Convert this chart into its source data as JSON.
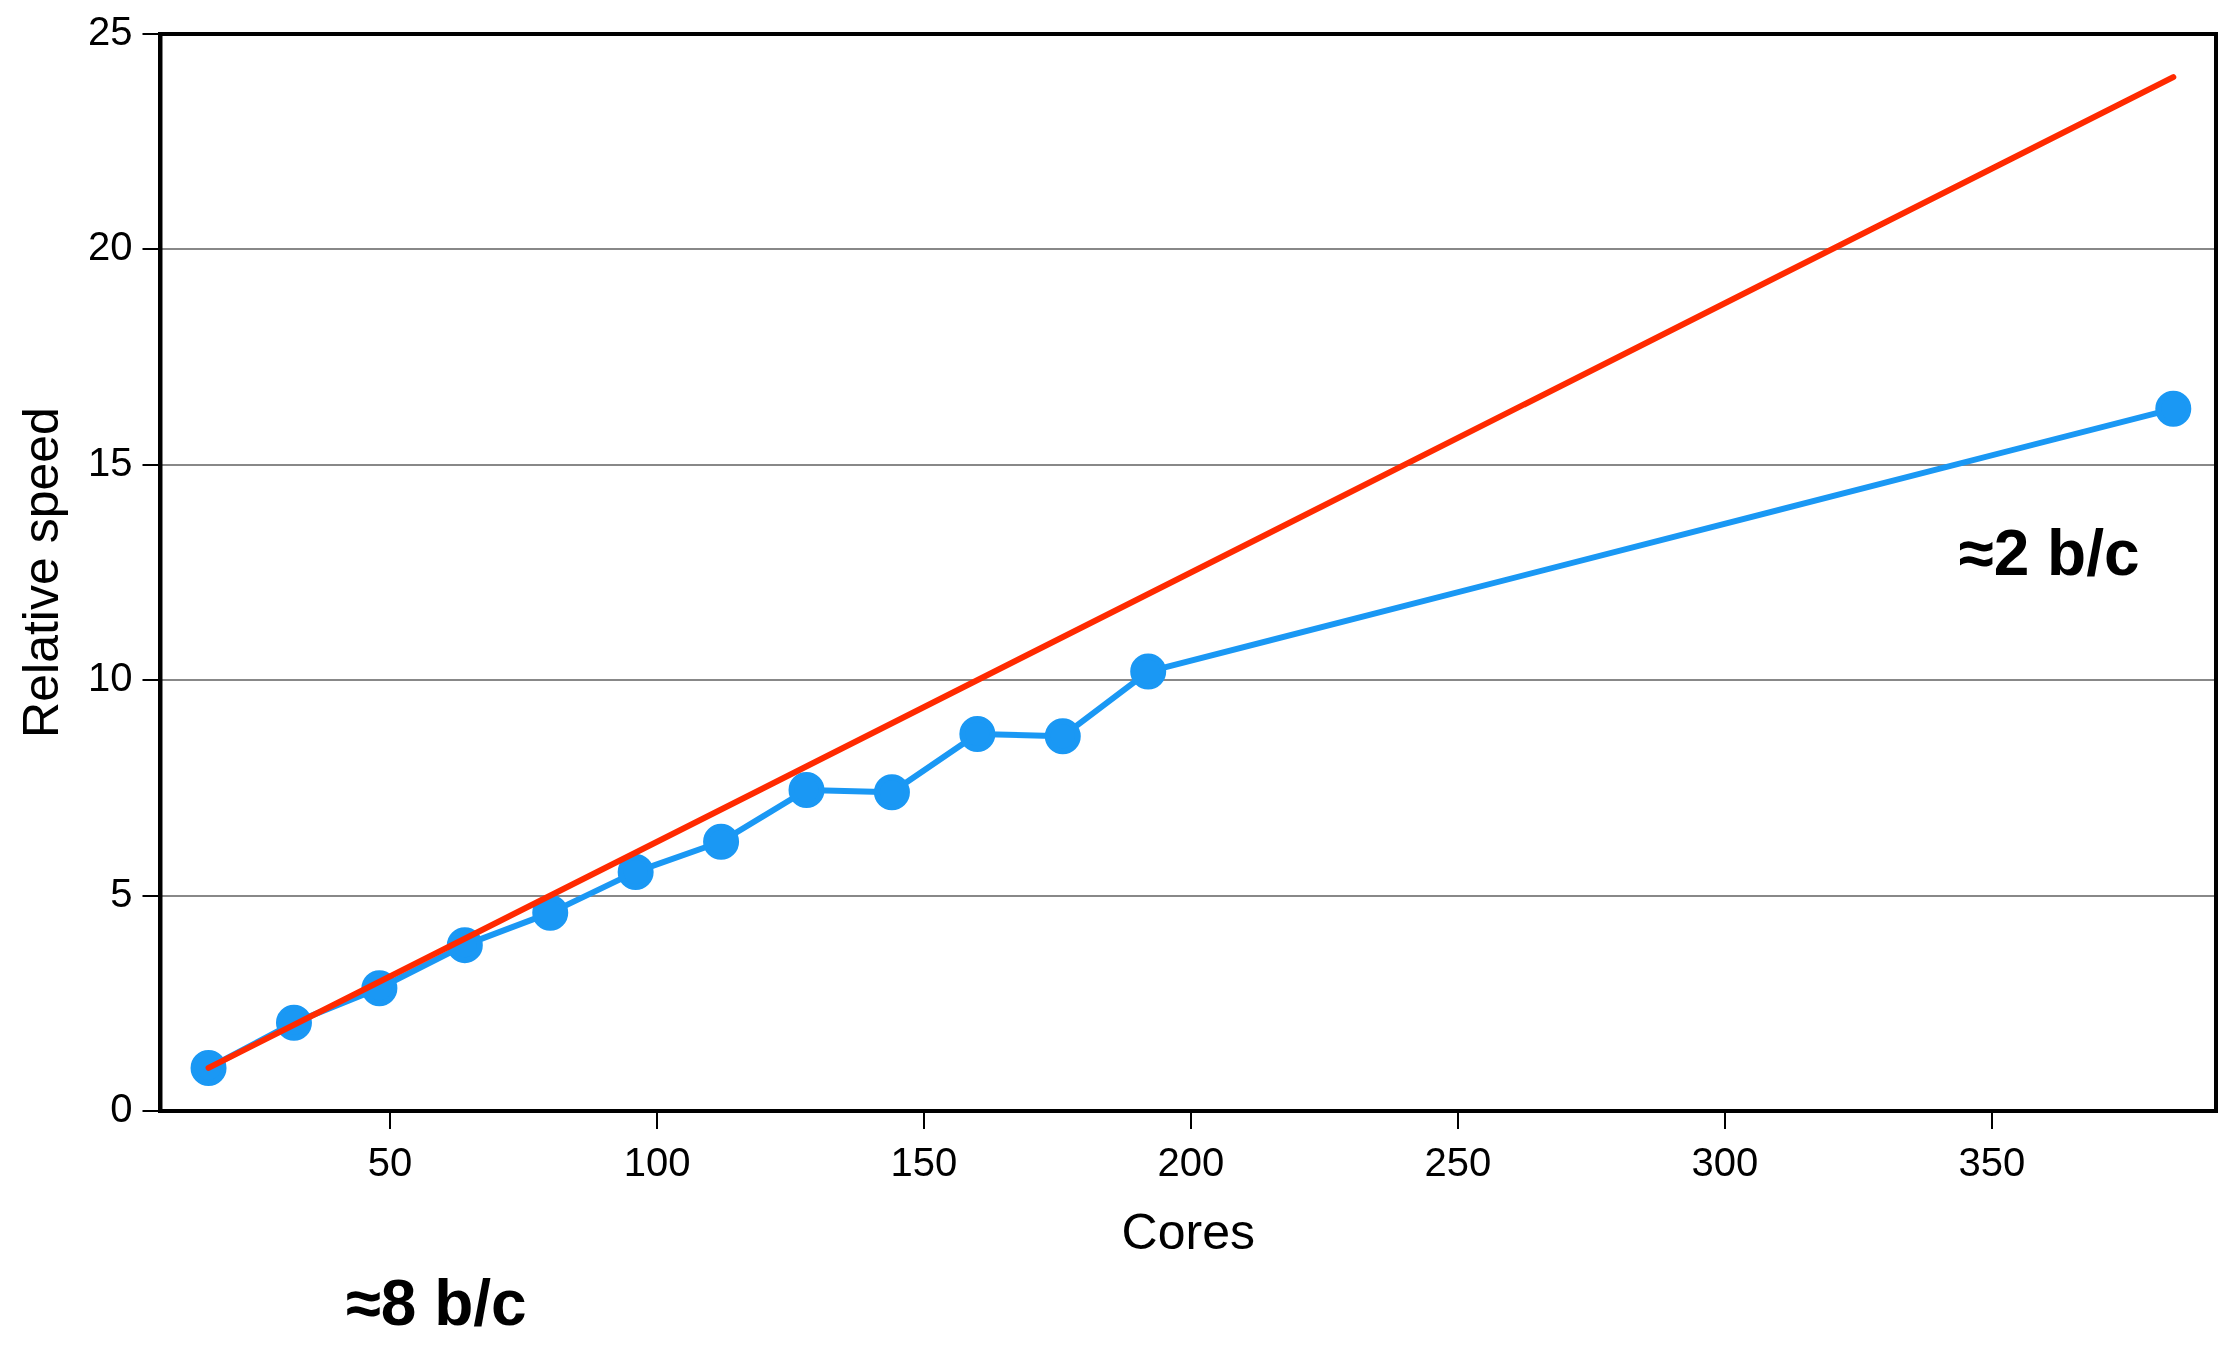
{
  "chart_data": {
    "type": "line",
    "xlabel": "Cores",
    "ylabel": "Relative speed",
    "xlim": [
      7,
      392
    ],
    "xticks": [
      50,
      100,
      150,
      200,
      250,
      300,
      350
    ],
    "ylim": [
      0,
      25
    ],
    "yticks": [
      0,
      5,
      10,
      15,
      20,
      25
    ],
    "grid": "y",
    "legend": false,
    "series": [
      {
        "type": "line",
        "color": "#ff2a00",
        "marker": "none",
        "x": [
          16,
          384
        ],
        "values": [
          1,
          24
        ]
      },
      {
        "type": "line",
        "color": "#1a98f4",
        "marker": "circle",
        "x": [
          16,
          32,
          48,
          64,
          80,
          96,
          112,
          128,
          144,
          160,
          176,
          192,
          384
        ],
        "values": [
          1,
          2.05,
          2.85,
          3.85,
          4.6,
          5.55,
          6.25,
          7.45,
          7.4,
          8.75,
          8.7,
          10.2,
          16.3
        ]
      }
    ],
    "annotations": [
      "≈8 b/c",
      "≈2 b/c"
    ]
  }
}
